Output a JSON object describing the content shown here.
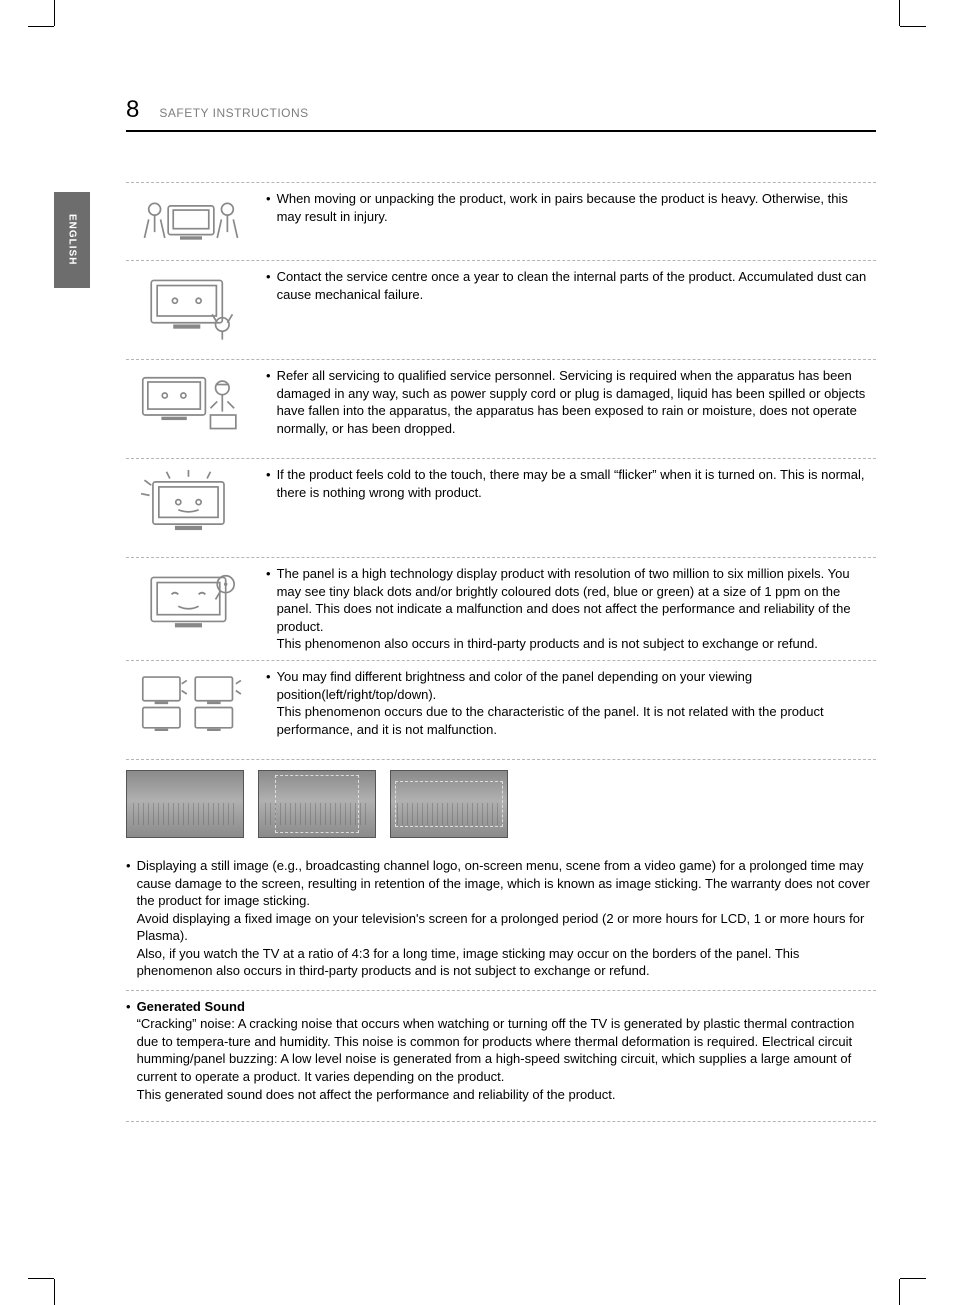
{
  "page_number": "8",
  "header_title": "SAFETY INSTRUCTIONS",
  "language_tab": "ENGLISH",
  "rows": [
    {
      "text": "When moving or unpacking the product, work in pairs because the product is heavy. Otherwise, this may result in injury."
    },
    {
      "text": "Contact the service centre once a year to clean the internal parts of the product. Accumulated dust can cause mechanical failure."
    },
    {
      "text": "Refer all servicing to qualified service personnel. Servicing is required when the apparatus has been damaged in any way, such as power supply cord or plug is damaged, liquid has been spilled or objects have fallen into the apparatus, the apparatus has been exposed to rain or moisture, does not operate normally, or has been dropped."
    },
    {
      "text": "If the product feels cold to the touch, there may be a small “flicker” when it is turned on. This is normal, there is nothing wrong with product."
    },
    {
      "text": "The panel is a high technology display product with resolution of two million to six million pixels. You may see tiny black dots and/or brightly coloured dots (red, blue or green) at a size of 1 ppm on the panel. This does not indicate a malfunction and does not affect the performance and reliability of the product.\nThis phenomenon also occurs in third-party products and is not subject to exchange or refund."
    },
    {
      "text": "You may find different brightness and color of the panel depending on your viewing position(left/right/top/down).\nThis phenomenon occurs due to the characteristic of the panel. It is not related with the product performance, and it is not malfunction."
    }
  ],
  "bottom_items": [
    {
      "lead": "",
      "text": "Displaying a still image (e.g., broadcasting channel logo, on-screen menu, scene from a video game) for a prolonged time may cause damage to the screen, resulting in retention of the image, which is known as image sticking. The warranty does not cover the product for image sticking.\nAvoid displaying a fixed image on your television's screen for a prolonged period (2 or more hours for LCD, 1 or more hours for Plasma).\nAlso, if you watch the TV at a ratio of 4:3 for a long time, image sticking may occur on the borders of the panel. This phenomenon also occurs in third-party products and is not subject to exchange or refund."
    },
    {
      "lead": "Generated Sound",
      "text": "“Cracking” noise: A cracking noise that occurs when watching or turning off the TV is generated by plastic thermal contraction due to tempera-ture and humidity. This noise is common for products where thermal deformation is required. Electrical circuit humming/panel buzzing: A low level noise is generated from a high-speed switching circuit, which supplies a large amount of current to operate a product. It varies depending on the product.\nThis generated sound does not affect the performance and reliability of the product."
    }
  ],
  "colors": {
    "text": "#000000",
    "muted": "#7d7d7d",
    "dashed": "#b5b5b5",
    "tab_bg": "#6d6d6d",
    "tab_text": "#ffffff",
    "illus_stroke": "#888888"
  }
}
